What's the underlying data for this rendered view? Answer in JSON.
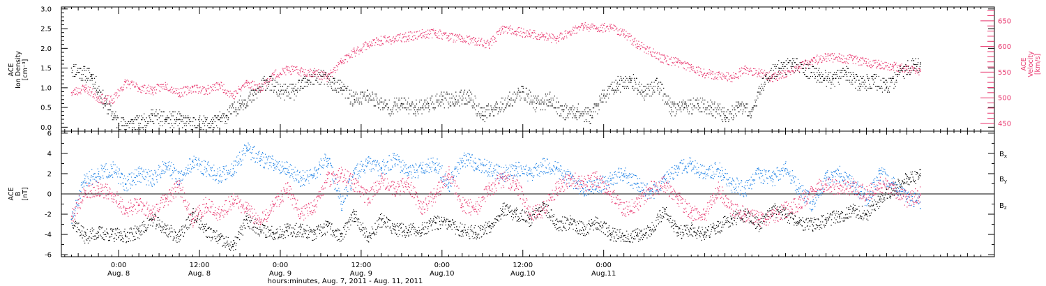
{
  "colors": {
    "black": "#000000",
    "pink": "#e8336c",
    "blue": "#1e82e6"
  },
  "chart_data": [
    {
      "type": "scatter",
      "panel": "top",
      "ylabel_left": [
        "ACE",
        "Ion Density",
        "[cm⁻³]"
      ],
      "ylabel_right": [
        "ACE",
        "Velocity",
        "[km/s]"
      ],
      "yticks_left": [
        "0.0",
        "0.5",
        "1.0",
        "1.5",
        "2.0",
        "2.5",
        "3.0"
      ],
      "yticks_right": [
        "450",
        "500",
        "550",
        "600",
        "650"
      ],
      "ylim_left": [
        -0.1,
        3.05
      ],
      "ylim_right": [
        435,
        677
      ],
      "series": [
        {
          "axis": "left",
          "color": "black",
          "x": [
            -7,
            -4,
            -2,
            0,
            2,
            3,
            5,
            7,
            9,
            10,
            12,
            14,
            16,
            18,
            20,
            22,
            24,
            26,
            28,
            30,
            32,
            33,
            35,
            37,
            40,
            42,
            44,
            46,
            48,
            50,
            52,
            54,
            56,
            58,
            60,
            62,
            64,
            66,
            68,
            70,
            72,
            74,
            76,
            78,
            80,
            82,
            84,
            86,
            88,
            90,
            92,
            94,
            96,
            98,
            100,
            102,
            104,
            106,
            108,
            110,
            112,
            114,
            116,
            118,
            119
          ],
          "y": [
            1.5,
            1.3,
            0.6,
            0.1,
            0.1,
            0.1,
            0.3,
            0.2,
            0.2,
            0.1,
            0.1,
            0.1,
            0.3,
            0.6,
            0.8,
            1.2,
            0.9,
            0.9,
            1.2,
            1.3,
            1.1,
            1.0,
            0.7,
            0.8,
            0.5,
            0.6,
            0.5,
            0.6,
            0.7,
            0.7,
            0.8,
            0.3,
            0.5,
            0.7,
            0.9,
            0.6,
            0.7,
            0.4,
            0.4,
            0.3,
            0.8,
            1.1,
            1.2,
            0.9,
            1.1,
            0.5,
            0.5,
            0.6,
            0.5,
            0.3,
            0.5,
            0.4,
            1.3,
            1.5,
            1.6,
            1.5,
            1.3,
            1.2,
            1.4,
            1.1,
            1.2,
            1.0,
            1.4,
            1.6,
            1.6
          ]
        },
        {
          "axis": "right",
          "color": "pink",
          "x": [
            -7,
            -5,
            -3,
            -1,
            1,
            3,
            5,
            7,
            9,
            11,
            13,
            15,
            17,
            19,
            21,
            23,
            25,
            27,
            29,
            31,
            33,
            35,
            37,
            39,
            41,
            43,
            45,
            47,
            49,
            51,
            53,
            55,
            57,
            59,
            61,
            63,
            65,
            67,
            69,
            71,
            73,
            75,
            77,
            79,
            81,
            83,
            85,
            87,
            89,
            91,
            93,
            95,
            97,
            99,
            101,
            103,
            105,
            107,
            109,
            111,
            113,
            115,
            117,
            119
          ],
          "y": [
            510,
            520,
            500,
            495,
            530,
            520,
            515,
            525,
            510,
            520,
            515,
            525,
            505,
            530,
            520,
            545,
            555,
            552,
            550,
            540,
            570,
            590,
            605,
            612,
            615,
            620,
            625,
            627,
            620,
            615,
            610,
            605,
            635,
            630,
            625,
            620,
            615,
            630,
            640,
            635,
            640,
            625,
            605,
            590,
            575,
            570,
            560,
            548,
            545,
            540,
            555,
            550,
            540,
            548,
            560,
            573,
            580,
            578,
            575,
            570,
            565,
            562,
            555,
            552
          ]
        }
      ]
    },
    {
      "type": "scatter",
      "panel": "bottom",
      "ylabel_left": [
        "ACE",
        "B",
        "[nT]"
      ],
      "yticks_left": [
        "-6",
        "-4",
        "-2",
        "0",
        "2",
        "4",
        "6"
      ],
      "ylim_left": [
        -6.2,
        6.2
      ],
      "legend": [
        "Bx",
        "By",
        "Bz"
      ],
      "series": [
        {
          "name": "Bx",
          "color": "black",
          "x": [
            -7,
            -5,
            -3,
            -1,
            1,
            3,
            5,
            7,
            9,
            11,
            13,
            15,
            17,
            19,
            21,
            23,
            25,
            27,
            29,
            31,
            33,
            35,
            37,
            39,
            41,
            43,
            45,
            47,
            49,
            51,
            53,
            55,
            57,
            59,
            61,
            63,
            65,
            67,
            69,
            71,
            73,
            75,
            77,
            79,
            81,
            83,
            85,
            87,
            89,
            91,
            93,
            95,
            97,
            99,
            101,
            103,
            105,
            107,
            109,
            111,
            113,
            115,
            117,
            119
          ],
          "y": [
            -2.5,
            -4.2,
            -3.8,
            -4.0,
            -4.1,
            -3.7,
            -2.5,
            -3.5,
            -4.2,
            -2.0,
            -3.6,
            -4.5,
            -5.2,
            -2.5,
            -3.5,
            -3.8,
            -3.6,
            -3.5,
            -4.0,
            -3.2,
            -4.2,
            -2.0,
            -4.3,
            -2.5,
            -3.5,
            -3.6,
            -3.5,
            -2.8,
            -3.0,
            -3.6,
            -3.8,
            -3.2,
            -1.5,
            -2.0,
            -2.5,
            -1.0,
            -3.0,
            -2.8,
            -3.5,
            -2.8,
            -3.9,
            -4.1,
            -4.0,
            -3.5,
            -1.5,
            -3.8,
            -3.5,
            -4.0,
            -3.2,
            -2.5,
            -2.0,
            -3.0,
            -1.5,
            -2.0,
            -2.8,
            -3.0,
            -2.5,
            -2.2,
            -1.5,
            -2.0,
            -0.5,
            0.5,
            1.5,
            1.8
          ]
        },
        {
          "name": "By",
          "color": "blue",
          "x": [
            -7,
            -5,
            -3,
            -1,
            1,
            3,
            5,
            7,
            9,
            11,
            13,
            15,
            17,
            19,
            21,
            23,
            25,
            27,
            29,
            31,
            33,
            35,
            37,
            39,
            41,
            43,
            45,
            47,
            49,
            51,
            53,
            55,
            57,
            59,
            61,
            63,
            65,
            67,
            69,
            71,
            73,
            75,
            77,
            79,
            81,
            83,
            85,
            87,
            89,
            91,
            93,
            95,
            97,
            99,
            101,
            103,
            105,
            107,
            109,
            111,
            113,
            115,
            117,
            119
          ],
          "y": [
            -2.5,
            1.5,
            2.0,
            2.5,
            1.0,
            2.0,
            1.5,
            3.0,
            1.5,
            3.2,
            2.5,
            1.8,
            2.5,
            4.5,
            3.5,
            3.0,
            2.5,
            1.5,
            2.0,
            3.5,
            -1.0,
            2.0,
            3.0,
            2.5,
            3.5,
            2.0,
            2.5,
            3.0,
            1.0,
            3.5,
            3.0,
            2.5,
            2.0,
            2.5,
            2.0,
            2.8,
            2.5,
            1.5,
            0.5,
            0.8,
            1.5,
            2.0,
            1.0,
            0.0,
            1.5,
            2.5,
            3.0,
            2.0,
            2.5,
            1.0,
            0.5,
            2.0,
            1.5,
            2.5,
            0.5,
            -1.0,
            1.5,
            2.0,
            1.0,
            -0.5,
            2.0,
            1.0,
            -0.5,
            -0.8
          ]
        },
        {
          "name": "Bz",
          "color": "pink",
          "x": [
            -7,
            -5,
            -3,
            -1,
            1,
            3,
            5,
            7,
            9,
            11,
            13,
            15,
            17,
            19,
            21,
            23,
            25,
            27,
            29,
            31,
            33,
            35,
            37,
            39,
            41,
            43,
            45,
            47,
            49,
            51,
            53,
            55,
            57,
            59,
            61,
            63,
            65,
            67,
            69,
            71,
            73,
            75,
            77,
            79,
            81,
            83,
            85,
            87,
            89,
            91,
            93,
            95,
            97,
            99,
            101,
            103,
            105,
            107,
            109,
            111,
            113,
            115,
            117,
            119
          ],
          "y": [
            -2.2,
            0.3,
            0.5,
            0.0,
            -1.5,
            -1.0,
            -1.8,
            -0.5,
            0.8,
            -2.5,
            -1.0,
            -2.0,
            -0.5,
            -1.5,
            -2.8,
            -1.0,
            0.5,
            -2.0,
            -1.2,
            1.5,
            2.0,
            1.0,
            -0.5,
            1.5,
            0.5,
            1.0,
            -1.5,
            0.0,
            2.0,
            -1.0,
            -1.5,
            0.5,
            1.5,
            1.0,
            -2.0,
            -1.5,
            0.5,
            1.5,
            1.0,
            1.5,
            0.0,
            -1.5,
            -1.0,
            0.5,
            1.0,
            -0.5,
            -1.8,
            -2.0,
            0.5,
            -1.5,
            -2.0,
            -2.5,
            -2.2,
            -1.5,
            -1.0,
            0.5,
            1.0,
            0.5,
            0.8,
            0.0,
            1.0,
            0.5,
            -0.5,
            0.0
          ]
        }
      ]
    }
  ],
  "xaxis": {
    "xlim": [
      -8.5,
      130
    ],
    "ticks": [
      {
        "x": 0,
        "time": "0:00",
        "date": "Aug. 8"
      },
      {
        "x": 12,
        "time": "12:00",
        "date": "Aug. 8"
      },
      {
        "x": 24,
        "time": "0:00",
        "date": "Aug. 9"
      },
      {
        "x": 36,
        "time": "12:00",
        "date": "Aug. 9"
      },
      {
        "x": 48,
        "time": "0:00",
        "date": "Aug.10"
      },
      {
        "x": 60,
        "time": "12:00",
        "date": "Aug.10"
      },
      {
        "x": 72,
        "time": "0:00",
        "date": "Aug.11"
      }
    ],
    "xlabel": "hours:minutes, Aug.  7, 2011 - Aug. 11, 2011"
  }
}
